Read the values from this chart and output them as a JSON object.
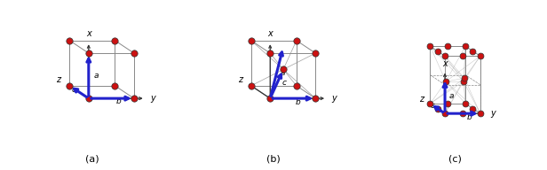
{
  "fig_width": 6.16,
  "fig_height": 1.92,
  "dpi": 100,
  "bg": "#ffffff",
  "node_color": "#cc1111",
  "node_edge": "#333333",
  "edge_color": "#888888",
  "edge_color_dark": "#555555",
  "bold_color": "#2222cc",
  "black": "#000000",
  "gray_axis": "#333333",
  "labels": [
    "(a)",
    "(b)",
    "(c)"
  ],
  "OX": 0.42,
  "OY": 0.28
}
